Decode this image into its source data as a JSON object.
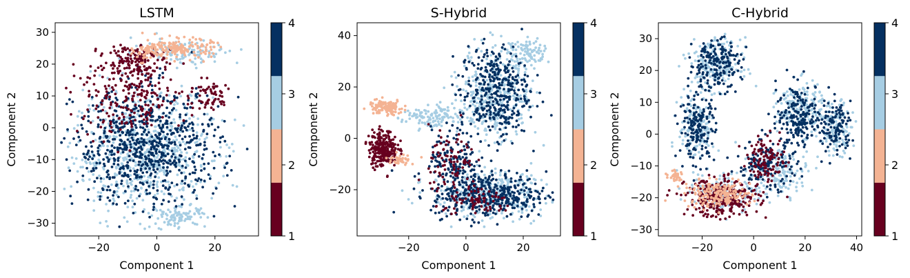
{
  "colorbar": {
    "ticks": [
      1,
      2,
      3,
      4
    ],
    "bands": [
      {
        "from": 1,
        "to": 1.75,
        "color": "#67001f"
      },
      {
        "from": 1.75,
        "to": 2.5,
        "color": "#f4b393"
      },
      {
        "from": 2.5,
        "to": 3.25,
        "color": "#a6cde3"
      },
      {
        "from": 3.25,
        "to": 4,
        "color": "#053061"
      }
    ]
  },
  "chart_data": [
    {
      "type": "scatter",
      "title": "LSTM",
      "xlabel": "Component 1",
      "ylabel": "Component 2",
      "xlim": [
        -35,
        35
      ],
      "ylim": [
        -34,
        33
      ],
      "xticks": [
        -20,
        0,
        20
      ],
      "yticks": [
        -30,
        -20,
        -10,
        0,
        10,
        20,
        30
      ],
      "clusters": [
        {
          "class": 3,
          "cx": -5,
          "cy": -8,
          "rx": 24,
          "ry": 18,
          "n": 700
        },
        {
          "class": 3,
          "cx": 8,
          "cy": -28,
          "rx": 9,
          "ry": 3,
          "n": 90
        },
        {
          "class": 3,
          "cx": 10,
          "cy": 24,
          "rx": 18,
          "ry": 4,
          "n": 120
        },
        {
          "class": 4,
          "cx": -3,
          "cy": -6,
          "rx": 25,
          "ry": 18,
          "n": 750
        },
        {
          "class": 1,
          "cx": -10,
          "cy": 10,
          "rx": 20,
          "ry": 12,
          "n": 240
        },
        {
          "class": 1,
          "cx": -8,
          "cy": 22,
          "rx": 8,
          "ry": 5,
          "n": 120
        },
        {
          "class": 1,
          "cx": 18,
          "cy": 10,
          "rx": 8,
          "ry": 5,
          "n": 60
        },
        {
          "class": 2,
          "cx": 8,
          "cy": 25,
          "rx": 11,
          "ry": 3,
          "n": 160
        },
        {
          "class": 2,
          "cx": -4,
          "cy": 24,
          "rx": 4,
          "ry": 3,
          "n": 40
        }
      ]
    },
    {
      "type": "scatter",
      "title": "S-Hybrid",
      "xlabel": "Component 1",
      "ylabel": "Component 2",
      "xlim": [
        -38,
        33
      ],
      "ylim": [
        -38,
        45
      ],
      "xticks": [
        -20,
        0,
        20
      ],
      "yticks": [
        -20,
        0,
        20,
        40
      ],
      "clusters": [
        {
          "class": 3,
          "cx": 8,
          "cy": -22,
          "rx": 20,
          "ry": 9,
          "n": 380
        },
        {
          "class": 3,
          "cx": 10,
          "cy": 18,
          "rx": 12,
          "ry": 18,
          "n": 380
        },
        {
          "class": 3,
          "cx": 22,
          "cy": 33,
          "rx": 7,
          "ry": 5,
          "n": 90
        },
        {
          "class": 3,
          "cx": -12,
          "cy": 8,
          "rx": 10,
          "ry": 5,
          "n": 120
        },
        {
          "class": 4,
          "cx": 8,
          "cy": -22,
          "rx": 20,
          "ry": 9,
          "n": 420
        },
        {
          "class": 4,
          "cx": 10,
          "cy": 18,
          "rx": 12,
          "ry": 18,
          "n": 380
        },
        {
          "class": 4,
          "cx": -4,
          "cy": -8,
          "rx": 8,
          "ry": 12,
          "n": 140
        },
        {
          "class": 1,
          "cx": -29,
          "cy": -4,
          "rx": 5,
          "ry": 7,
          "n": 260
        },
        {
          "class": 1,
          "cx": -5,
          "cy": -10,
          "rx": 8,
          "ry": 14,
          "n": 90
        },
        {
          "class": 1,
          "cx": 5,
          "cy": -25,
          "rx": 12,
          "ry": 5,
          "n": 70
        },
        {
          "class": 2,
          "cx": -28,
          "cy": 12,
          "rx": 6,
          "ry": 3,
          "n": 120
        },
        {
          "class": 2,
          "cx": -23,
          "cy": -8,
          "rx": 5,
          "ry": 2,
          "n": 40
        }
      ]
    },
    {
      "type": "scatter",
      "title": "C-Hybrid",
      "xlabel": "Component 1",
      "ylabel": "Component 2",
      "xlim": [
        -37,
        42
      ],
      "ylim": [
        -32,
        35
      ],
      "xticks": [
        -20,
        0,
        20,
        40
      ],
      "yticks": [
        -30,
        -20,
        -10,
        0,
        10,
        20,
        30
      ],
      "clusters": [
        {
          "class": 3,
          "cx": -15,
          "cy": 22,
          "rx": 10,
          "ry": 8,
          "n": 200
        },
        {
          "class": 3,
          "cx": -22,
          "cy": 2,
          "rx": 7,
          "ry": 10,
          "n": 150
        },
        {
          "class": 3,
          "cx": 18,
          "cy": 8,
          "rx": 9,
          "ry": 8,
          "n": 180
        },
        {
          "class": 3,
          "cx": 32,
          "cy": 2,
          "rx": 6,
          "ry": 8,
          "n": 120
        },
        {
          "class": 3,
          "cx": 10,
          "cy": -12,
          "rx": 12,
          "ry": 7,
          "n": 150
        },
        {
          "class": 3,
          "cx": -12,
          "cy": -18,
          "rx": 14,
          "ry": 6,
          "n": 120
        },
        {
          "class": 4,
          "cx": -15,
          "cy": 22,
          "rx": 10,
          "ry": 8,
          "n": 200
        },
        {
          "class": 4,
          "cx": -22,
          "cy": 2,
          "rx": 7,
          "ry": 10,
          "n": 170
        },
        {
          "class": 4,
          "cx": 18,
          "cy": 6,
          "rx": 9,
          "ry": 10,
          "n": 190
        },
        {
          "class": 4,
          "cx": 32,
          "cy": 2,
          "rx": 6,
          "ry": 8,
          "n": 120
        },
        {
          "class": 4,
          "cx": 5,
          "cy": -10,
          "rx": 12,
          "ry": 8,
          "n": 150
        },
        {
          "class": 1,
          "cx": -12,
          "cy": -20,
          "rx": 14,
          "ry": 6,
          "n": 300
        },
        {
          "class": 1,
          "cx": 5,
          "cy": -8,
          "rx": 7,
          "ry": 7,
          "n": 110
        },
        {
          "class": 2,
          "cx": -14,
          "cy": -19,
          "rx": 13,
          "ry": 4,
          "n": 180
        },
        {
          "class": 2,
          "cx": -30,
          "cy": -13,
          "rx": 3,
          "ry": 2,
          "n": 30
        }
      ]
    }
  ]
}
